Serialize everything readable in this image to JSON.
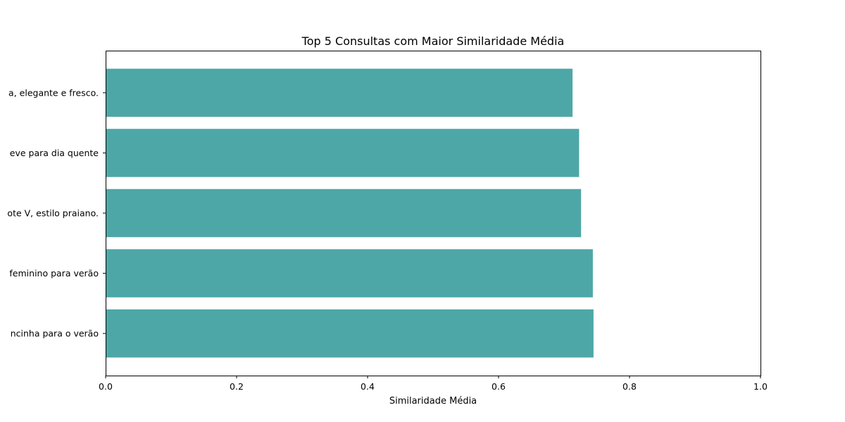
{
  "chart_data": {
    "type": "bar",
    "orientation": "horizontal",
    "title": "Top 5 Consultas com Maior Similaridade Média",
    "xlabel": "Similaridade Média",
    "ylabel": "",
    "xlim": [
      0.0,
      1.0
    ],
    "xticks": [
      "0.0",
      "0.2",
      "0.4",
      "0.6",
      "0.8",
      "1.0"
    ],
    "categories": [
      "ncinha para o verão",
      "feminino para verão",
      "ote V, estilo praiano.",
      "eve para dia quente",
      "a, elegante e fresco."
    ],
    "values": [
      0.745,
      0.744,
      0.726,
      0.723,
      0.713
    ],
    "bar_color": "#4ea7a7",
    "grid": false,
    "legend": "none"
  }
}
